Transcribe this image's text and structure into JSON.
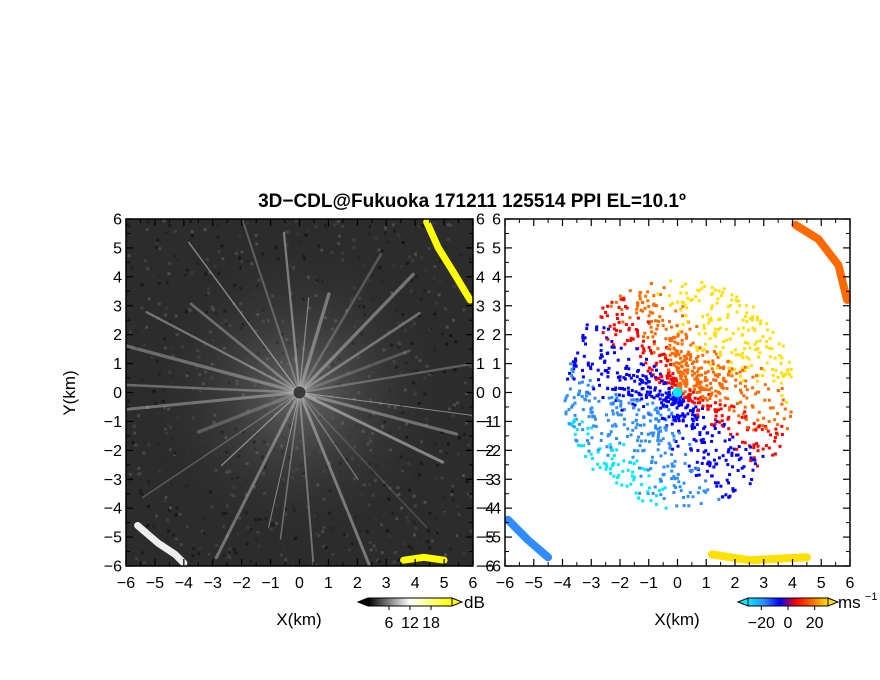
{
  "title": "3D−CDL@Fukuoka 171211 125514 PPI EL=10.1º",
  "chart_data": [
    {
      "type": "heatmap",
      "panel": "left",
      "quantity": "signal intensity",
      "xlabel": "X(km)",
      "ylabel": "Y(km)",
      "xlim": [
        -6,
        6
      ],
      "ylim": [
        -6,
        6
      ],
      "x_ticks": [
        -6,
        -5,
        -4,
        -3,
        -2,
        -1,
        0,
        1,
        2,
        3,
        4,
        5,
        6
      ],
      "y_ticks": [
        -6,
        -5,
        -4,
        -3,
        -2,
        -1,
        0,
        1,
        2,
        3,
        4,
        5,
        6
      ],
      "x_tick_labels": [
        "−6",
        "−5",
        "−4",
        "−3",
        "−2",
        "−1",
        "0",
        "1",
        "2",
        "3",
        "4",
        "5",
        "6"
      ],
      "y_tick_labels": [
        "6",
        "5",
        "4",
        "3",
        "2",
        "1",
        "0",
        "−1",
        "−2",
        "−3",
        "−4",
        "−5",
        "−6"
      ],
      "y_right_tick_labels": [
        "6",
        "5",
        "4",
        "3",
        "2",
        "1",
        "0",
        "−1",
        "−2",
        "−3",
        "−4",
        "−5",
        "−6"
      ],
      "colorbar": {
        "unit": "dB",
        "tick_values": [
          6,
          12,
          18
        ],
        "tick_labels": [
          "6",
          "12",
          "18"
        ],
        "range": [
          0,
          24
        ],
        "colors": [
          "#000000",
          "#ffffff",
          "#ffff00"
        ]
      },
      "radar_center": [
        0,
        0
      ],
      "radial_streak_count": 28,
      "strong_echo_regions": [
        {
          "label": "yellow",
          "points": [
            [
              4.4,
              5.9
            ],
            [
              4.8,
              5.0
            ],
            [
              5.3,
              4.2
            ],
            [
              5.9,
              3.2
            ]
          ]
        },
        {
          "label": "white",
          "points": [
            [
              -5.6,
              -4.6
            ],
            [
              -4.9,
              -5.2
            ],
            [
              -4.3,
              -5.6
            ],
            [
              -4.0,
              -5.9
            ]
          ]
        },
        {
          "label": "yellow",
          "points": [
            [
              3.6,
              -5.8
            ],
            [
              4.3,
              -5.7
            ],
            [
              5.0,
              -5.8
            ]
          ]
        }
      ]
    },
    {
      "type": "heatmap",
      "panel": "right",
      "quantity": "radial velocity",
      "xlabel": "X(km)",
      "ylabel": "",
      "xlim": [
        -6,
        6
      ],
      "ylim": [
        -6,
        6
      ],
      "x_ticks": [
        -6,
        -5,
        -4,
        -3,
        -2,
        -1,
        0,
        1,
        2,
        3,
        4,
        5,
        6
      ],
      "y_ticks": [
        -6,
        -5,
        -4,
        -3,
        -2,
        -1,
        0,
        1,
        2,
        3,
        4,
        5,
        6
      ],
      "x_tick_labels": [
        "−6",
        "−5",
        "−4",
        "−3",
        "−2",
        "−1",
        "0",
        "1",
        "2",
        "3",
        "4",
        "5",
        "6"
      ],
      "y_left_tick_labels": [
        "6",
        "5",
        "4",
        "3",
        "2",
        "1",
        "0",
        "−1",
        "−2",
        "−3",
        "−4",
        "−5",
        "−6"
      ],
      "colorbar": {
        "unit": "ms",
        "unit_exponent": "−1",
        "tick_values": [
          -20,
          0,
          20
        ],
        "tick_labels": [
          "−20",
          "0",
          "20"
        ],
        "range": [
          -30,
          30
        ],
        "colors": [
          "#00e8ff",
          "#2f8dff",
          "#0000ff",
          "#ff0000",
          "#ff6a00",
          "#ffe000"
        ]
      },
      "flow_direction_deg": 50,
      "far_echo_regions": [
        {
          "label": "top-right",
          "value": 12,
          "points": [
            [
              4.1,
              5.8
            ],
            [
              4.9,
              5.3
            ],
            [
              5.6,
              4.4
            ],
            [
              5.9,
              3.2
            ]
          ]
        },
        {
          "label": "bottom-left",
          "value": -22,
          "points": [
            [
              -5.9,
              -4.4
            ],
            [
              -5.2,
              -5.1
            ],
            [
              -4.5,
              -5.7
            ]
          ]
        },
        {
          "label": "bottom",
          "value": 18,
          "points": [
            [
              1.2,
              -5.6
            ],
            [
              2.5,
              -5.8
            ],
            [
              4.5,
              -5.7
            ]
          ]
        }
      ]
    }
  ]
}
